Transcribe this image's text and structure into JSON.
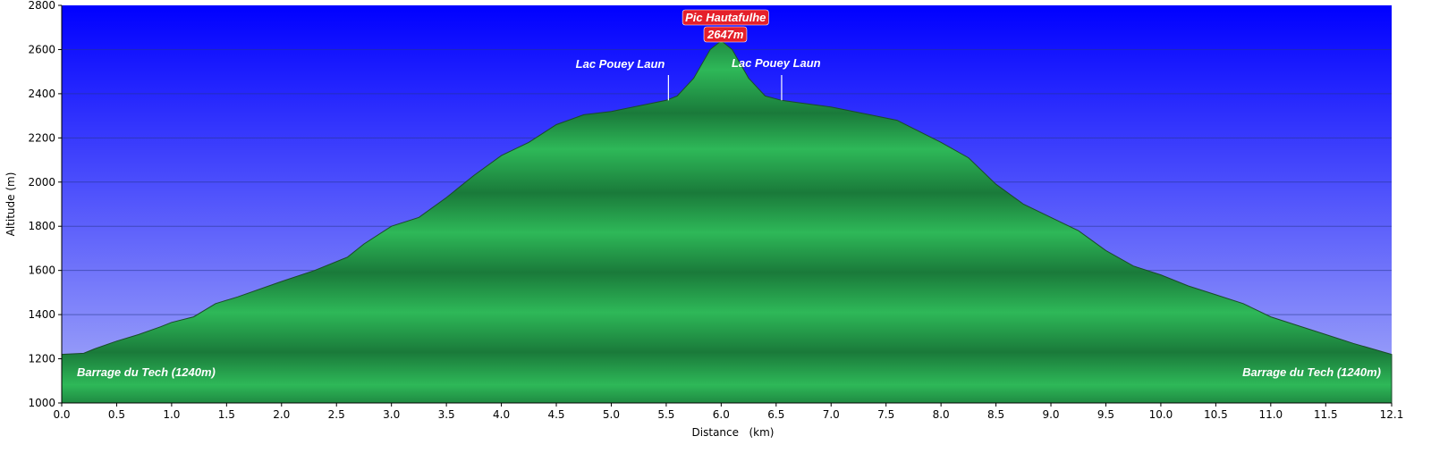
{
  "chart_data": {
    "type": "area",
    "title": "",
    "xlabel": "Distance   (km)",
    "ylabel": "Altitude (m)",
    "xlim": [
      0,
      12.1
    ],
    "ylim": [
      1000,
      2800
    ],
    "x_ticks": [
      0.0,
      0.5,
      1.0,
      1.5,
      2.0,
      2.5,
      3.0,
      3.5,
      4.0,
      4.5,
      5.0,
      5.5,
      6.0,
      6.5,
      7.0,
      7.5,
      8.0,
      8.5,
      9.0,
      9.5,
      10.0,
      10.5,
      11.0,
      11.5,
      12.1
    ],
    "x_tick_labels": [
      "0.0",
      "0.5",
      "1.0",
      "1.5",
      "2.0",
      "2.5",
      "3.0",
      "3.5",
      "4.0",
      "4.5",
      "5.0",
      "5.5",
      "6.0",
      "6.5",
      "7.0",
      "7.5",
      "8.0",
      "8.5",
      "9.0",
      "9.5",
      "10.0",
      "10.5",
      "11.0",
      "11.5",
      "12.1"
    ],
    "y_ticks": [
      1000,
      1200,
      1400,
      1600,
      1800,
      2000,
      2200,
      2400,
      2600,
      2800
    ],
    "y_tick_labels": [
      "1000",
      "1200",
      "1400",
      "1600",
      "1800",
      "2000",
      "2200",
      "2400",
      "2600",
      "2800"
    ],
    "grid": true,
    "colors": {
      "sky_top": "#0000ff",
      "sky_bottom": "#a8aef8",
      "terrain_light": "#2eb858",
      "terrain_dark": "#1a7a3a",
      "summit_badge": "#e5202a"
    },
    "series": [
      {
        "x": [
          0.0,
          0.2,
          0.3,
          0.5,
          0.7,
          0.9,
          1.0,
          1.2,
          1.4,
          1.6,
          2.0,
          2.3,
          2.6,
          2.75,
          3.0,
          3.25,
          3.5,
          3.75,
          4.0,
          4.25,
          4.5,
          4.75,
          5.0,
          5.25,
          5.5,
          5.6,
          5.75,
          5.9,
          6.0,
          6.1,
          6.25,
          6.4,
          6.55,
          7.0,
          7.3,
          7.6,
          8.0,
          8.25,
          8.5,
          8.75,
          9.0,
          9.25,
          9.5,
          9.75,
          10.0,
          10.25,
          10.5,
          10.75,
          11.0,
          11.25,
          11.5,
          11.75,
          12.1
        ],
        "y": [
          1220,
          1225,
          1245,
          1280,
          1310,
          1345,
          1365,
          1390,
          1450,
          1480,
          1550,
          1600,
          1660,
          1720,
          1800,
          1840,
          1930,
          2030,
          2120,
          2180,
          2260,
          2305,
          2320,
          2345,
          2370,
          2390,
          2470,
          2600,
          2640,
          2600,
          2470,
          2390,
          2370,
          2340,
          2310,
          2280,
          2180,
          2110,
          1990,
          1900,
          1840,
          1780,
          1690,
          1620,
          1580,
          1530,
          1490,
          1450,
          1390,
          1350,
          1310,
          1270,
          1220
        ]
      }
    ],
    "annotations": [
      {
        "text": "Pic Hautafulhe",
        "x": 6.04,
        "y": 2647,
        "badge": true
      },
      {
        "text": "2647m",
        "x": 6.04,
        "y": 2647,
        "badge": true
      },
      {
        "text": "Lac Pouey Laun",
        "x": 5.52,
        "y": 2370
      },
      {
        "text": "Lac Pouey Laun",
        "x": 6.55,
        "y": 2370
      },
      {
        "text": "Barrage du Tech (1240m)",
        "x": 0.0,
        "y": 1240
      },
      {
        "text": "Barrage du Tech (1240m)",
        "x": 12.1,
        "y": 1240
      }
    ]
  }
}
